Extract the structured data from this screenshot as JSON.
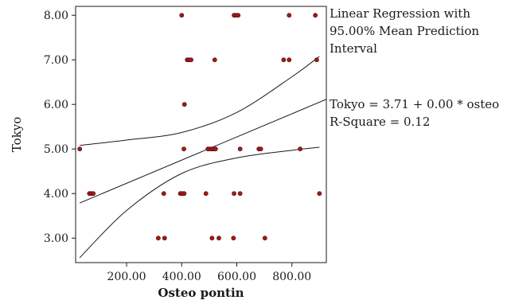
{
  "chart_data": {
    "type": "scatter",
    "xlabel": "Osteo pontin",
    "ylabel": "Tokyo",
    "xlim": [
      15,
      925
    ],
    "ylim": [
      2.45,
      8.2
    ],
    "x_ticks": [
      200,
      400,
      600,
      800
    ],
    "x_tick_labels": [
      "200.00",
      "400.00",
      "600.00",
      "800.00"
    ],
    "y_ticks": [
      3,
      4,
      5,
      6,
      7,
      8
    ],
    "y_tick_labels": [
      "3.00",
      "4.00",
      "5.00",
      "6.00",
      "7.00",
      "8.00"
    ],
    "grid": false,
    "points": [
      {
        "x": 400,
        "y": 8
      },
      {
        "x": 590,
        "y": 8
      },
      {
        "x": 597,
        "y": 8
      },
      {
        "x": 605,
        "y": 8
      },
      {
        "x": 790,
        "y": 8
      },
      {
        "x": 885,
        "y": 8
      },
      {
        "x": 420,
        "y": 7
      },
      {
        "x": 427,
        "y": 7
      },
      {
        "x": 434,
        "y": 7
      },
      {
        "x": 520,
        "y": 7
      },
      {
        "x": 770,
        "y": 7
      },
      {
        "x": 790,
        "y": 7
      },
      {
        "x": 890,
        "y": 7
      },
      {
        "x": 410,
        "y": 6
      },
      {
        "x": 30,
        "y": 5
      },
      {
        "x": 408,
        "y": 5
      },
      {
        "x": 495,
        "y": 5
      },
      {
        "x": 502,
        "y": 5
      },
      {
        "x": 509,
        "y": 5
      },
      {
        "x": 516,
        "y": 5
      },
      {
        "x": 523,
        "y": 5
      },
      {
        "x": 612,
        "y": 5
      },
      {
        "x": 680,
        "y": 5
      },
      {
        "x": 687,
        "y": 5
      },
      {
        "x": 830,
        "y": 5
      },
      {
        "x": 65,
        "y": 4
      },
      {
        "x": 72,
        "y": 4
      },
      {
        "x": 79,
        "y": 4
      },
      {
        "x": 335,
        "y": 4
      },
      {
        "x": 395,
        "y": 4
      },
      {
        "x": 402,
        "y": 4
      },
      {
        "x": 409,
        "y": 4
      },
      {
        "x": 488,
        "y": 4
      },
      {
        "x": 590,
        "y": 4
      },
      {
        "x": 612,
        "y": 4
      },
      {
        "x": 900,
        "y": 4
      },
      {
        "x": 315,
        "y": 3
      },
      {
        "x": 338,
        "y": 3
      },
      {
        "x": 510,
        "y": 3
      },
      {
        "x": 535,
        "y": 3
      },
      {
        "x": 588,
        "y": 3
      },
      {
        "x": 702,
        "y": 3
      }
    ],
    "regression": {
      "intercept": 3.71,
      "slope": 0.0026,
      "x_range": [
        30,
        925
      ]
    },
    "interval_lower": [
      [
        30,
        2.56
      ],
      [
        200,
        3.62
      ],
      [
        400,
        4.45
      ],
      [
        600,
        4.8
      ],
      [
        800,
        4.97
      ],
      [
        900,
        5.04
      ]
    ],
    "interval_upper": [
      [
        30,
        5.08
      ],
      [
        200,
        5.2
      ],
      [
        400,
        5.37
      ],
      [
        600,
        5.82
      ],
      [
        800,
        6.62
      ],
      [
        900,
        7.08
      ]
    ],
    "marker_color": "#9e1b1b",
    "line_color": "#1a1a1a"
  },
  "annotations": {
    "legend_lines": [
      "Linear Regression with",
      "95.00% Mean Prediction",
      "Interval"
    ],
    "equation": "Tokyo = 3.71 + 0.00 * osteo",
    "r_square": "R-Square = 0.12"
  }
}
